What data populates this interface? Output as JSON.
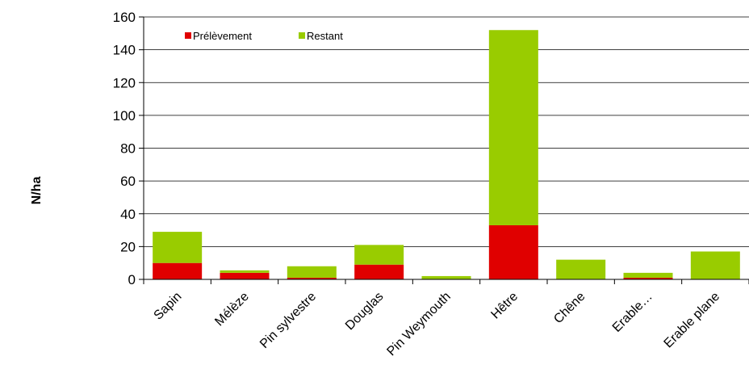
{
  "chart_data": {
    "type": "bar",
    "stacked": true,
    "categories": [
      "Sapin",
      "Mélèze",
      "Pin sylvestre",
      "Douglas",
      "Pin Weymouth",
      "Hêtre",
      "Chêne",
      "Erable…",
      "Erable plane"
    ],
    "series": [
      {
        "name": "Prélèvement",
        "color": "#e00000",
        "values": [
          10,
          4,
          1,
          9,
          0,
          33,
          0,
          1,
          0
        ]
      },
      {
        "name": "Restant",
        "color": "#99cc00",
        "values": [
          19,
          1.5,
          7,
          12,
          2,
          119,
          12,
          3,
          17
        ]
      }
    ],
    "ylabel": "N/ha",
    "ylim": [
      0,
      160
    ],
    "yticks": [
      0,
      20,
      40,
      60,
      80,
      100,
      120,
      140,
      160
    ],
    "grid": true,
    "legend": "top-left"
  }
}
